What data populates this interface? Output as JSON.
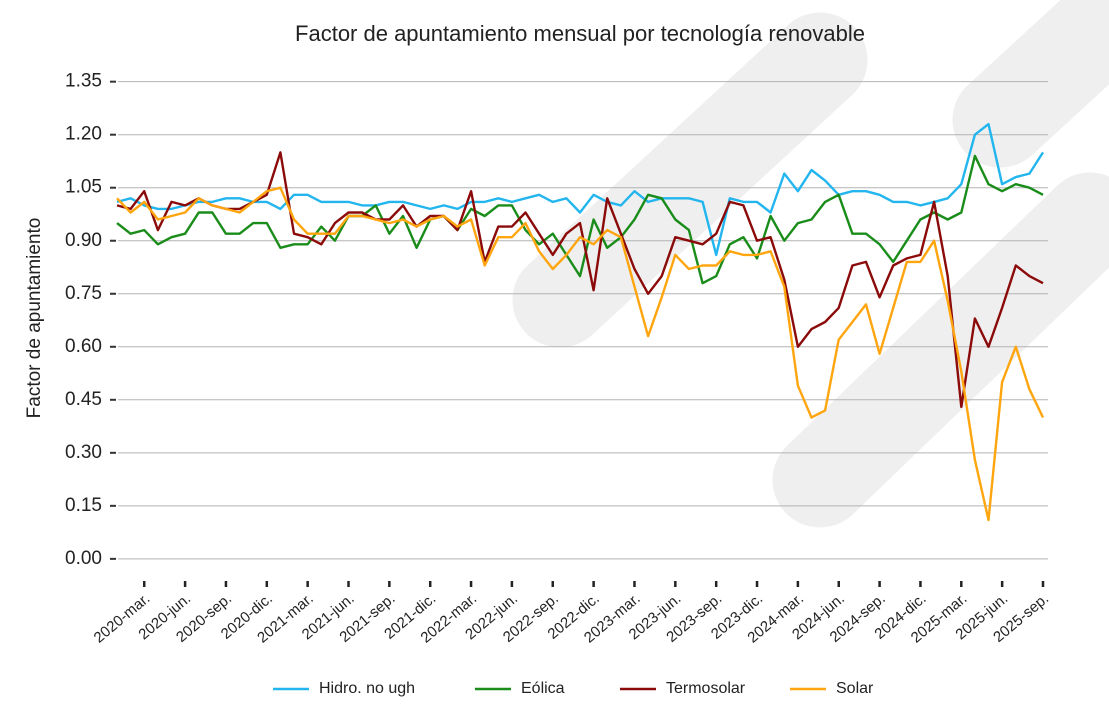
{
  "chart_data": {
    "type": "line",
    "title": "Factor de apuntamiento mensual por tecnología renovable",
    "ylabel": "Factor de apuntamiento",
    "categories": [
      null,
      null,
      "2020-mar.",
      null,
      null,
      "2020-jun.",
      null,
      null,
      "2020-sep.",
      null,
      null,
      "2020-dic.",
      null,
      null,
      "2021-mar.",
      null,
      null,
      "2021-jun.",
      null,
      null,
      "2021-sep.",
      null,
      null,
      "2021-dic.",
      null,
      null,
      "2022-mar.",
      null,
      null,
      "2022-jun.",
      null,
      null,
      "2022-sep.",
      null,
      null,
      "2022-dic.",
      null,
      null,
      "2023-mar.",
      null,
      null,
      "2023-jun.",
      null,
      null,
      "2023-sep.",
      null,
      null,
      "2023-dic.",
      null,
      null,
      "2024-mar.",
      null,
      null,
      "2024-jun.",
      null,
      null,
      "2024-sep.",
      null,
      null,
      "2024-dic.",
      null,
      null,
      "2025-mar.",
      null,
      null,
      "2025-jun.",
      null,
      null,
      "2025-sep."
    ],
    "series": [
      {
        "name": "Hidro. no ugh",
        "color": "#22b5ee",
        "values": [
          1.01,
          1.02,
          1.0,
          0.99,
          0.99,
          1.0,
          1.01,
          1.01,
          1.02,
          1.02,
          1.01,
          1.01,
          0.99,
          1.03,
          1.03,
          1.01,
          1.01,
          1.01,
          1.0,
          1.0,
          1.01,
          1.01,
          1.0,
          0.99,
          1.0,
          0.99,
          1.01,
          1.01,
          1.02,
          1.01,
          1.02,
          1.03,
          1.01,
          1.02,
          0.98,
          1.03,
          1.01,
          1.0,
          1.04,
          1.01,
          1.02,
          1.02,
          1.02,
          1.01,
          0.86,
          1.02,
          1.01,
          1.01,
          0.98,
          1.09,
          1.04,
          1.1,
          1.07,
          1.03,
          1.04,
          1.04,
          1.03,
          1.01,
          1.01,
          1.0,
          1.01,
          1.02,
          1.06,
          1.2,
          1.23,
          1.06,
          1.08,
          1.09,
          1.15
        ]
      },
      {
        "name": "Eólica",
        "color": "#1a8c1a",
        "values": [
          0.95,
          0.92,
          0.93,
          0.89,
          0.91,
          0.92,
          0.98,
          0.98,
          0.92,
          0.92,
          0.95,
          0.95,
          0.88,
          0.89,
          0.89,
          0.94,
          0.9,
          0.97,
          0.97,
          1.0,
          0.92,
          0.97,
          0.88,
          0.96,
          0.97,
          0.93,
          0.99,
          0.97,
          1.0,
          1.0,
          0.93,
          0.89,
          0.92,
          0.86,
          0.8,
          0.96,
          0.88,
          0.91,
          0.96,
          1.03,
          1.02,
          0.96,
          0.93,
          0.78,
          0.8,
          0.89,
          0.91,
          0.85,
          0.97,
          0.9,
          0.95,
          0.96,
          1.01,
          1.03,
          0.92,
          0.92,
          0.89,
          0.84,
          0.9,
          0.96,
          0.98,
          0.96,
          0.98,
          1.14,
          1.06,
          1.04,
          1.06,
          1.05,
          1.03
        ]
      },
      {
        "name": "Termosolar",
        "color": "#8b0a0a",
        "values": [
          1.0,
          0.99,
          1.04,
          0.93,
          1.01,
          1.0,
          1.02,
          1.0,
          0.99,
          0.99,
          1.01,
          1.03,
          1.15,
          0.92,
          0.91,
          0.89,
          0.95,
          0.98,
          0.98,
          0.96,
          0.96,
          1.0,
          0.94,
          0.97,
          0.97,
          0.93,
          1.04,
          0.84,
          0.94,
          0.94,
          0.98,
          0.92,
          0.86,
          0.92,
          0.95,
          0.76,
          1.02,
          0.92,
          0.82,
          0.75,
          0.8,
          0.91,
          0.9,
          0.89,
          0.92,
          1.01,
          1.0,
          0.9,
          0.91,
          0.79,
          0.6,
          0.65,
          0.67,
          0.71,
          0.83,
          0.84,
          0.74,
          0.83,
          0.85,
          0.86,
          1.01,
          0.8,
          0.43,
          0.68,
          0.6,
          0.71,
          0.83,
          0.8,
          0.78
        ]
      },
      {
        "name": "Solar",
        "color": "#ffa50f",
        "values": [
          1.02,
          0.98,
          1.01,
          0.96,
          0.97,
          0.98,
          1.02,
          1.0,
          0.99,
          0.98,
          1.01,
          1.04,
          1.05,
          0.96,
          0.92,
          0.92,
          0.92,
          0.97,
          0.97,
          0.96,
          0.95,
          0.96,
          0.94,
          0.96,
          0.97,
          0.94,
          0.96,
          0.83,
          0.91,
          0.91,
          0.95,
          0.87,
          0.82,
          0.86,
          0.91,
          0.89,
          0.93,
          0.91,
          0.77,
          0.63,
          0.74,
          0.86,
          0.82,
          0.83,
          0.83,
          0.87,
          0.86,
          0.86,
          0.87,
          0.77,
          0.49,
          0.4,
          0.42,
          0.62,
          0.67,
          0.72,
          0.58,
          0.71,
          0.84,
          0.84,
          0.9,
          0.73,
          0.53,
          0.28,
          0.11,
          0.5,
          0.6,
          0.48,
          0.4
        ]
      }
    ],
    "ylim": [
      -0.04,
      1.4
    ],
    "yticks": [
      {
        "value": 0,
        "label": "0.00"
      },
      {
        "value": 0.15,
        "label": "0.15"
      },
      {
        "value": 0.3,
        "label": "0.30"
      },
      {
        "value": 0.45,
        "label": "0.45"
      },
      {
        "value": 0.6,
        "label": "0.60"
      },
      {
        "value": 0.75,
        "label": "0.75"
      },
      {
        "value": 0.9,
        "label": "0.90"
      },
      {
        "value": 1.05,
        "label": "1.05"
      },
      {
        "value": 1.2,
        "label": "1.20"
      },
      {
        "value": 1.35,
        "label": "1.35"
      }
    ],
    "grid": true,
    "legend": "bottom"
  }
}
